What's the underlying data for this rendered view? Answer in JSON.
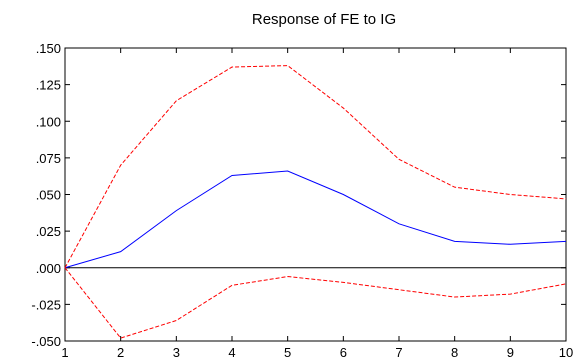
{
  "chart_data": {
    "type": "line",
    "title": "Response of FE to IG",
    "xlabel": "",
    "ylabel": "",
    "x": [
      1,
      2,
      3,
      4,
      5,
      6,
      7,
      8,
      9,
      10
    ],
    "xlim": [
      1,
      10
    ],
    "ylim": [
      -0.05,
      0.15
    ],
    "y_ticks": [
      -0.05,
      -0.025,
      0,
      0.025,
      0.05,
      0.075,
      0.1,
      0.125,
      0.15
    ],
    "y_tick_labels": [
      "-.050",
      "-.025",
      ".000",
      ".025",
      ".050",
      ".075",
      ".100",
      ".125",
      ".150"
    ],
    "x_tick_labels": [
      "1",
      "2",
      "3",
      "4",
      "5",
      "6",
      "7",
      "8",
      "9",
      "10"
    ],
    "grid": false,
    "zero_line": true,
    "series": [
      {
        "role": "response",
        "style": "solid",
        "color": "#0000ff",
        "values": [
          0.0,
          0.011,
          0.039,
          0.063,
          0.066,
          0.05,
          0.03,
          0.018,
          0.016,
          0.018
        ]
      },
      {
        "role": "upper-band",
        "style": "dashed",
        "color": "#ff0000",
        "values": [
          0.0,
          0.07,
          0.114,
          0.137,
          0.138,
          0.109,
          0.074,
          0.055,
          0.05,
          0.047
        ]
      },
      {
        "role": "lower-band",
        "style": "dashed",
        "color": "#ff0000",
        "values": [
          0.0,
          -0.048,
          -0.036,
          -0.012,
          -0.006,
          -0.01,
          -0.015,
          -0.02,
          -0.018,
          -0.011
        ]
      }
    ]
  }
}
